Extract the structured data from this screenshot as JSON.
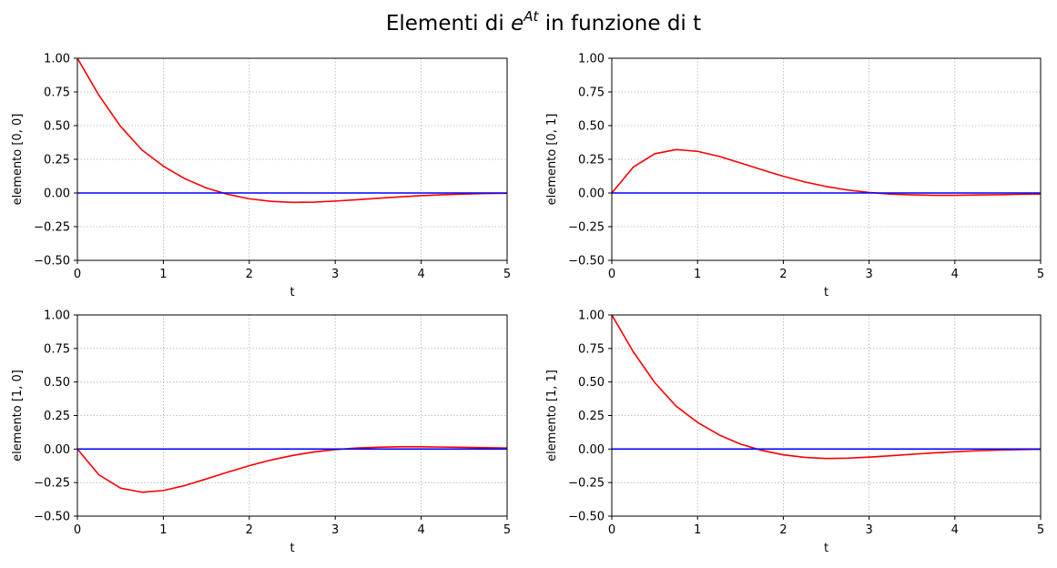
{
  "figure": {
    "title_main": "Elementi di ",
    "title_base": "e",
    "title_sup": "At",
    "title_rest": " in funzione di t"
  },
  "chart_data": [
    {
      "type": "line",
      "title": "",
      "xlabel": "t",
      "ylabel": "elemento [0, 0]",
      "xlim": [
        0,
        5
      ],
      "ylim": [
        -0.5,
        1.0
      ],
      "xticks": [
        "0",
        "1",
        "2",
        "3",
        "4",
        "5"
      ],
      "yticks": [
        "1.00",
        "0.75",
        "0.50",
        "0.25",
        "0.00",
        "−0.25",
        "−0.50"
      ],
      "grid": true,
      "x": [
        0,
        0.25,
        0.5,
        0.75,
        1.0,
        1.25,
        1.5,
        1.75,
        2.0,
        2.25,
        2.5,
        2.75,
        3.0,
        3.25,
        3.5,
        3.75,
        4.0,
        4.25,
        4.5,
        4.75,
        5.0
      ],
      "series": [
        {
          "color": "#ff0000",
          "values": [
            1.0,
            0.726,
            0.496,
            0.32,
            0.199,
            0.106,
            0.037,
            -0.01,
            -0.043,
            -0.062,
            -0.07,
            -0.068,
            -0.06,
            -0.05,
            -0.039,
            -0.029,
            -0.02,
            -0.013,
            -0.008,
            -0.004,
            -0.002
          ]
        },
        {
          "color": "#0000ff",
          "values": [
            0,
            0,
            0,
            0,
            0,
            0,
            0,
            0,
            0,
            0,
            0,
            0,
            0,
            0,
            0,
            0,
            0,
            0,
            0,
            0,
            0
          ]
        }
      ]
    },
    {
      "type": "line",
      "title": "",
      "xlabel": "t",
      "ylabel": "elemento [0, 1]",
      "xlim": [
        0,
        5
      ],
      "ylim": [
        -0.5,
        1.0
      ],
      "xticks": [
        "0",
        "1",
        "2",
        "3",
        "4",
        "5"
      ],
      "yticks": [
        "1.00",
        "0.75",
        "0.50",
        "0.25",
        "0.00",
        "−0.25",
        "−0.50"
      ],
      "grid": true,
      "x": [
        0,
        0.25,
        0.5,
        0.75,
        1.0,
        1.25,
        1.5,
        1.75,
        2.0,
        2.25,
        2.5,
        2.75,
        3.0,
        3.25,
        3.5,
        3.75,
        4.0,
        4.25,
        4.5,
        4.75,
        5.0
      ],
      "series": [
        {
          "color": "#ff0000",
          "values": [
            0.0,
            0.192,
            0.291,
            0.322,
            0.309,
            0.272,
            0.223,
            0.172,
            0.124,
            0.082,
            0.048,
            0.022,
            0.004,
            -0.008,
            -0.014,
            -0.017,
            -0.017,
            -0.015,
            -0.013,
            -0.01,
            -0.008
          ]
        },
        {
          "color": "#0000ff",
          "values": [
            0,
            0,
            0,
            0,
            0,
            0,
            0,
            0,
            0,
            0,
            0,
            0,
            0,
            0,
            0,
            0,
            0,
            0,
            0,
            0,
            0
          ]
        }
      ]
    },
    {
      "type": "line",
      "title": "",
      "xlabel": "t",
      "ylabel": "elemento [1, 0]",
      "xlim": [
        0,
        5
      ],
      "ylim": [
        -0.5,
        1.0
      ],
      "xticks": [
        "0",
        "1",
        "2",
        "3",
        "4",
        "5"
      ],
      "yticks": [
        "1.00",
        "0.75",
        "0.50",
        "0.25",
        "0.00",
        "−0.25",
        "−0.50"
      ],
      "grid": true,
      "x": [
        0,
        0.25,
        0.5,
        0.75,
        1.0,
        1.25,
        1.5,
        1.75,
        2.0,
        2.25,
        2.5,
        2.75,
        3.0,
        3.25,
        3.5,
        3.75,
        4.0,
        4.25,
        4.5,
        4.75,
        5.0
      ],
      "series": [
        {
          "color": "#ff0000",
          "values": [
            0.0,
            -0.192,
            -0.291,
            -0.322,
            -0.309,
            -0.272,
            -0.223,
            -0.172,
            -0.124,
            -0.082,
            -0.048,
            -0.022,
            -0.004,
            0.008,
            0.014,
            0.017,
            0.017,
            0.015,
            0.013,
            0.01,
            0.008
          ]
        },
        {
          "color": "#0000ff",
          "values": [
            0,
            0,
            0,
            0,
            0,
            0,
            0,
            0,
            0,
            0,
            0,
            0,
            0,
            0,
            0,
            0,
            0,
            0,
            0,
            0,
            0
          ]
        }
      ]
    },
    {
      "type": "line",
      "title": "",
      "xlabel": "t",
      "ylabel": "elemento [1, 1]",
      "xlim": [
        0,
        5
      ],
      "ylim": [
        -0.5,
        1.0
      ],
      "xticks": [
        "0",
        "1",
        "2",
        "3",
        "4",
        "5"
      ],
      "yticks": [
        "1.00",
        "0.75",
        "0.50",
        "0.25",
        "0.00",
        "−0.25",
        "−0.50"
      ],
      "grid": true,
      "x": [
        0,
        0.25,
        0.5,
        0.75,
        1.0,
        1.25,
        1.5,
        1.75,
        2.0,
        2.25,
        2.5,
        2.75,
        3.0,
        3.25,
        3.5,
        3.75,
        4.0,
        4.25,
        4.5,
        4.75,
        5.0
      ],
      "series": [
        {
          "color": "#ff0000",
          "values": [
            1.0,
            0.726,
            0.496,
            0.32,
            0.199,
            0.106,
            0.037,
            -0.01,
            -0.043,
            -0.062,
            -0.07,
            -0.068,
            -0.06,
            -0.05,
            -0.039,
            -0.029,
            -0.02,
            -0.013,
            -0.008,
            -0.004,
            -0.002
          ]
        },
        {
          "color": "#0000ff",
          "values": [
            0,
            0,
            0,
            0,
            0,
            0,
            0,
            0,
            0,
            0,
            0,
            0,
            0,
            0,
            0,
            0,
            0,
            0,
            0,
            0,
            0
          ]
        }
      ]
    }
  ]
}
